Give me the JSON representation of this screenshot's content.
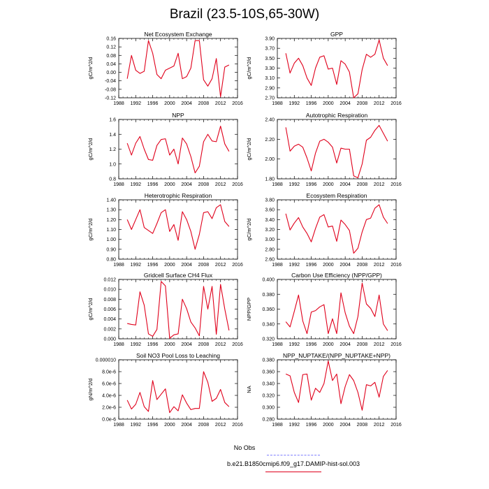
{
  "title": "Brazil (23.5-10S,65-30W)",
  "chart_data": [
    {
      "type": "line",
      "title": "Net Ecosystem Exchange",
      "ylabel": "gC/m^2/d",
      "xlim": [
        1988,
        2016
      ],
      "ylim": [
        -0.12,
        0.16
      ],
      "xticks": [
        1988,
        1992,
        1996,
        2000,
        2004,
        2008,
        2012,
        2016
      ],
      "yticks": [
        -0.12,
        -0.08,
        -0.04,
        0.0,
        0.04,
        0.08,
        0.12,
        0.16
      ],
      "ytick_labels": [
        "-0.12",
        "-0.08",
        "-0.04",
        "0.00",
        "0.04",
        "0.08",
        "0.12",
        "0.16"
      ],
      "series": [
        {
          "color": "#e0001b",
          "x": [
            1990,
            1991,
            1992,
            1993,
            1994,
            1995,
            1996,
            1997,
            1998,
            1999,
            2000,
            2001,
            2002,
            2003,
            2004,
            2005,
            2006,
            2007,
            2008,
            2009,
            2010,
            2011,
            2012,
            2013,
            2014
          ],
          "y": [
            -0.03,
            0.08,
            0.01,
            -0.005,
            0.005,
            0.15,
            0.09,
            -0.01,
            -0.03,
            0.01,
            0.02,
            0.03,
            0.09,
            -0.03,
            -0.02,
            0.02,
            0.15,
            0.15,
            -0.035,
            -0.065,
            -0.03,
            0.065,
            -0.115,
            0.025,
            0.035
          ]
        }
      ]
    },
    {
      "type": "line",
      "title": "GPP",
      "ylabel": "gC/m^2/d",
      "xlim": [
        1988,
        2016
      ],
      "ylim": [
        2.7,
        3.9
      ],
      "xticks": [
        1988,
        1992,
        1996,
        2000,
        2004,
        2008,
        2012,
        2016
      ],
      "yticks": [
        2.7,
        2.9,
        3.1,
        3.3,
        3.5,
        3.7,
        3.9
      ],
      "ytick_labels": [
        "2.70",
        "2.90",
        "3.10",
        "3.30",
        "3.50",
        "3.70",
        "3.90"
      ],
      "series": [
        {
          "color": "#e0001b",
          "x": [
            1990,
            1991,
            1992,
            1993,
            1994,
            1995,
            1996,
            1997,
            1998,
            1999,
            2000,
            2001,
            2002,
            2003,
            2004,
            2005,
            2006,
            2007,
            2008,
            2009,
            2010,
            2011,
            2012,
            2013,
            2014
          ],
          "y": [
            3.6,
            3.2,
            3.4,
            3.5,
            3.35,
            3.1,
            2.95,
            3.3,
            3.52,
            3.55,
            3.28,
            3.3,
            2.97,
            3.45,
            3.38,
            3.22,
            2.7,
            2.78,
            3.27,
            3.58,
            3.52,
            3.58,
            3.87,
            3.5,
            3.35
          ]
        }
      ]
    },
    {
      "type": "line",
      "title": "NPP",
      "ylabel": "gC/m^2/d",
      "xlim": [
        1988,
        2016
      ],
      "ylim": [
        0.8,
        1.6
      ],
      "xticks": [
        1988,
        1992,
        1996,
        2000,
        2004,
        2008,
        2012,
        2016
      ],
      "yticks": [
        0.8,
        1.0,
        1.2,
        1.4,
        1.6
      ],
      "ytick_labels": [
        "0.8",
        "1.0",
        "1.2",
        "1.4",
        "1.6"
      ],
      "series": [
        {
          "color": "#e0001b",
          "x": [
            1990,
            1991,
            1992,
            1993,
            1994,
            1995,
            1996,
            1997,
            1998,
            1999,
            2000,
            2001,
            2002,
            2003,
            2004,
            2005,
            2006,
            2007,
            2008,
            2009,
            2010,
            2011,
            2012,
            2013,
            2014
          ],
          "y": [
            1.28,
            1.12,
            1.28,
            1.37,
            1.2,
            1.06,
            1.05,
            1.25,
            1.33,
            1.34,
            1.12,
            1.2,
            1.0,
            1.35,
            1.27,
            1.1,
            0.88,
            0.97,
            1.3,
            1.4,
            1.31,
            1.3,
            1.51,
            1.27,
            1.17
          ]
        }
      ]
    },
    {
      "type": "line",
      "title": "Autotrophic Respiration",
      "ylabel": "gC/m^2/d",
      "xlim": [
        1988,
        2016
      ],
      "ylim": [
        1.8,
        2.4
      ],
      "xticks": [
        1988,
        1992,
        1996,
        2000,
        2004,
        2008,
        2012,
        2016
      ],
      "yticks": [
        1.8,
        2.0,
        2.2,
        2.4
      ],
      "ytick_labels": [
        "1.80",
        "2.00",
        "2.20",
        "2.40"
      ],
      "series": [
        {
          "color": "#e0001b",
          "x": [
            1990,
            1991,
            1992,
            1993,
            1994,
            1995,
            1996,
            1997,
            1998,
            1999,
            2000,
            2001,
            2002,
            2003,
            2004,
            2005,
            2006,
            2007,
            2008,
            2009,
            2010,
            2011,
            2012,
            2013,
            2014
          ],
          "y": [
            2.32,
            2.08,
            2.13,
            2.15,
            2.12,
            2.01,
            1.88,
            2.06,
            2.18,
            2.2,
            2.17,
            2.12,
            1.96,
            2.11,
            2.1,
            2.1,
            1.83,
            1.81,
            1.95,
            2.19,
            2.22,
            2.29,
            2.34,
            2.26,
            2.18
          ]
        }
      ]
    },
    {
      "type": "line",
      "title": "Heterotrophic Respiration",
      "ylabel": "gC/m^2/d",
      "xlim": [
        1988,
        2016
      ],
      "ylim": [
        0.8,
        1.4
      ],
      "xticks": [
        1988,
        1992,
        1996,
        2000,
        2004,
        2008,
        2012,
        2016
      ],
      "yticks": [
        0.8,
        0.9,
        1.0,
        1.1,
        1.2,
        1.3,
        1.4
      ],
      "ytick_labels": [
        "0.80",
        "0.90",
        "1.00",
        "1.10",
        "1.20",
        "1.30",
        "1.40"
      ],
      "series": [
        {
          "color": "#e0001b",
          "x": [
            1990,
            1991,
            1992,
            1993,
            1994,
            1995,
            1996,
            1997,
            1998,
            1999,
            2000,
            2001,
            2002,
            2003,
            2004,
            2005,
            2006,
            2007,
            2008,
            2009,
            2010,
            2011,
            2012,
            2013,
            2014
          ],
          "y": [
            1.2,
            1.1,
            1.2,
            1.3,
            1.12,
            1.09,
            1.06,
            1.16,
            1.27,
            1.3,
            1.08,
            1.15,
            0.99,
            1.28,
            1.2,
            1.08,
            0.9,
            1.05,
            1.27,
            1.28,
            1.21,
            1.32,
            1.35,
            1.18,
            1.13
          ]
        }
      ]
    },
    {
      "type": "line",
      "title": "Ecosystem Respiration",
      "ylabel": "gC/m^2/d",
      "xlim": [
        1988,
        2016
      ],
      "ylim": [
        2.6,
        3.8
      ],
      "xticks": [
        1988,
        1992,
        1996,
        2000,
        2004,
        2008,
        2012,
        2016
      ],
      "yticks": [
        2.6,
        2.8,
        3.0,
        3.2,
        3.4,
        3.6,
        3.8
      ],
      "ytick_labels": [
        "2.60",
        "2.80",
        "3.00",
        "3.20",
        "3.40",
        "3.60",
        "3.80"
      ],
      "series": [
        {
          "color": "#e0001b",
          "x": [
            1990,
            1991,
            1992,
            1993,
            1994,
            1995,
            1996,
            1997,
            1998,
            1999,
            2000,
            2001,
            2002,
            2003,
            2004,
            2005,
            2006,
            2007,
            2008,
            2009,
            2010,
            2011,
            2012,
            2013,
            2014
          ],
          "y": [
            3.52,
            3.19,
            3.33,
            3.44,
            3.25,
            3.12,
            2.95,
            3.22,
            3.45,
            3.5,
            3.25,
            3.27,
            2.96,
            3.39,
            3.3,
            3.18,
            2.72,
            2.82,
            3.15,
            3.4,
            3.43,
            3.63,
            3.7,
            3.45,
            3.32
          ]
        }
      ]
    },
    {
      "type": "line",
      "title": "Gridcell Surface CH4 Flux",
      "ylabel": "gC/m^2/d",
      "xlim": [
        1988,
        2016
      ],
      "ylim": [
        0.0,
        0.012
      ],
      "xticks": [
        1988,
        1992,
        1996,
        2000,
        2004,
        2008,
        2012,
        2016
      ],
      "yticks": [
        0.0,
        0.002,
        0.004,
        0.006,
        0.008,
        0.01,
        0.012
      ],
      "ytick_labels": [
        "0.000",
        "0.002",
        "0.004",
        "0.006",
        "0.008",
        "0.010",
        "0.012"
      ],
      "series": [
        {
          "color": "#e0001b",
          "x": [
            1990,
            1991,
            1992,
            1993,
            1994,
            1995,
            1996,
            1997,
            1998,
            1999,
            2000,
            2001,
            2002,
            2003,
            2004,
            2005,
            2006,
            2007,
            2008,
            2009,
            2010,
            2011,
            2012,
            2013,
            2014
          ],
          "y": [
            0.0031,
            0.0029,
            0.0028,
            0.0095,
            0.0068,
            0.001,
            0.0005,
            0.0019,
            0.0116,
            0.0107,
            0.0001,
            0.0008,
            0.001,
            0.008,
            0.0061,
            0.0034,
            0.0022,
            0.0006,
            0.0106,
            0.006,
            0.0106,
            0.0009,
            0.011,
            0.006,
            0.0017
          ]
        }
      ]
    },
    {
      "type": "line",
      "title": "Carbon Use Efficiency (NPP/GPP)",
      "ylabel": "NPP/GPP",
      "xlim": [
        1988,
        2016
      ],
      "ylim": [
        0.32,
        0.4
      ],
      "xticks": [
        1988,
        1992,
        1996,
        2000,
        2004,
        2008,
        2012,
        2016
      ],
      "yticks": [
        0.32,
        0.34,
        0.36,
        0.38,
        0.4
      ],
      "ytick_labels": [
        "0.320",
        "0.340",
        "0.360",
        "0.380",
        "0.400"
      ],
      "series": [
        {
          "color": "#e0001b",
          "x": [
            1990,
            1991,
            1992,
            1993,
            1994,
            1995,
            1996,
            1997,
            1998,
            1999,
            2000,
            2001,
            2002,
            2003,
            2004,
            2005,
            2006,
            2007,
            2008,
            2009,
            2010,
            2011,
            2012,
            2013,
            2014
          ],
          "y": [
            0.343,
            0.336,
            0.357,
            0.379,
            0.344,
            0.327,
            0.356,
            0.358,
            0.363,
            0.366,
            0.327,
            0.347,
            0.327,
            0.382,
            0.355,
            0.337,
            0.327,
            0.35,
            0.395,
            0.367,
            0.361,
            0.35,
            0.379,
            0.34,
            0.331
          ]
        }
      ]
    },
    {
      "type": "line",
      "title": "Soil NO3 Pool Loss to Leaching",
      "ylabel": "gN/m^2/d",
      "xlim": [
        1988,
        2016
      ],
      "ylim": [
        0.0,
        1e-05
      ],
      "xticks": [
        1988,
        1992,
        1996,
        2000,
        2004,
        2008,
        2012,
        2016
      ],
      "yticks": [
        0.0,
        2e-06,
        4e-06,
        6e-06,
        8e-06,
        1e-05
      ],
      "ytick_labels": [
        "0.0e-6",
        "2.0e-6",
        "4.0e-6",
        "6.0e-6",
        "8.0e-6",
        "0.000010"
      ],
      "series": [
        {
          "color": "#e0001b",
          "x": [
            1990,
            1991,
            1992,
            1993,
            1994,
            1995,
            1996,
            1997,
            1998,
            1999,
            2000,
            2001,
            2002,
            2003,
            2004,
            2005,
            2006,
            2007,
            2008,
            2009,
            2010,
            2011,
            2012,
            2013,
            2014
          ],
          "y": [
            3.2e-06,
            1.7e-06,
            2.5e-06,
            4.5e-06,
            2.1e-06,
            1.3e-06,
            6.5e-06,
            3.3e-06,
            4.2e-06,
            5.1e-06,
            1.1e-06,
            2.1e-06,
            1.4e-06,
            4.1e-06,
            2.7e-06,
            1.6e-06,
            1.8e-06,
            1.8e-06,
            8e-06,
            6.2e-06,
            3e-06,
            3.5e-06,
            5e-06,
            2.8e-06,
            2.1e-06
          ]
        }
      ]
    },
    {
      "type": "line",
      "title": "NPP_NUPTAKE/(NPP_NUPTAKE+NPP)",
      "ylabel": "NA",
      "xlim": [
        1988,
        2016
      ],
      "ylim": [
        0.28,
        0.38
      ],
      "xticks": [
        1988,
        1992,
        1996,
        2000,
        2004,
        2008,
        2012,
        2016
      ],
      "yticks": [
        0.28,
        0.3,
        0.32,
        0.34,
        0.36,
        0.38
      ],
      "ytick_labels": [
        "0.280",
        "0.300",
        "0.320",
        "0.340",
        "0.360",
        "0.380"
      ],
      "series": [
        {
          "color": "#e0001b",
          "x": [
            1990,
            1991,
            1992,
            1993,
            1994,
            1995,
            1996,
            1997,
            1998,
            1999,
            2000,
            2001,
            2002,
            2003,
            2004,
            2005,
            2006,
            2007,
            2008,
            2009,
            2010,
            2011,
            2012,
            2013,
            2014
          ],
          "y": [
            0.356,
            0.353,
            0.325,
            0.308,
            0.355,
            0.356,
            0.312,
            0.332,
            0.325,
            0.34,
            0.378,
            0.345,
            0.356,
            0.306,
            0.335,
            0.355,
            0.345,
            0.325,
            0.295,
            0.338,
            0.336,
            0.342,
            0.317,
            0.352,
            0.362
          ]
        }
      ]
    }
  ],
  "legend": {
    "items": [
      {
        "label": "No Obs",
        "color": "#7f7fff",
        "dashed": true
      },
      {
        "label": "b.e21.B1850cmip6.f09_g17.DAMIP-hist-sol.003",
        "color": "#e0001b",
        "dashed": false
      }
    ]
  }
}
